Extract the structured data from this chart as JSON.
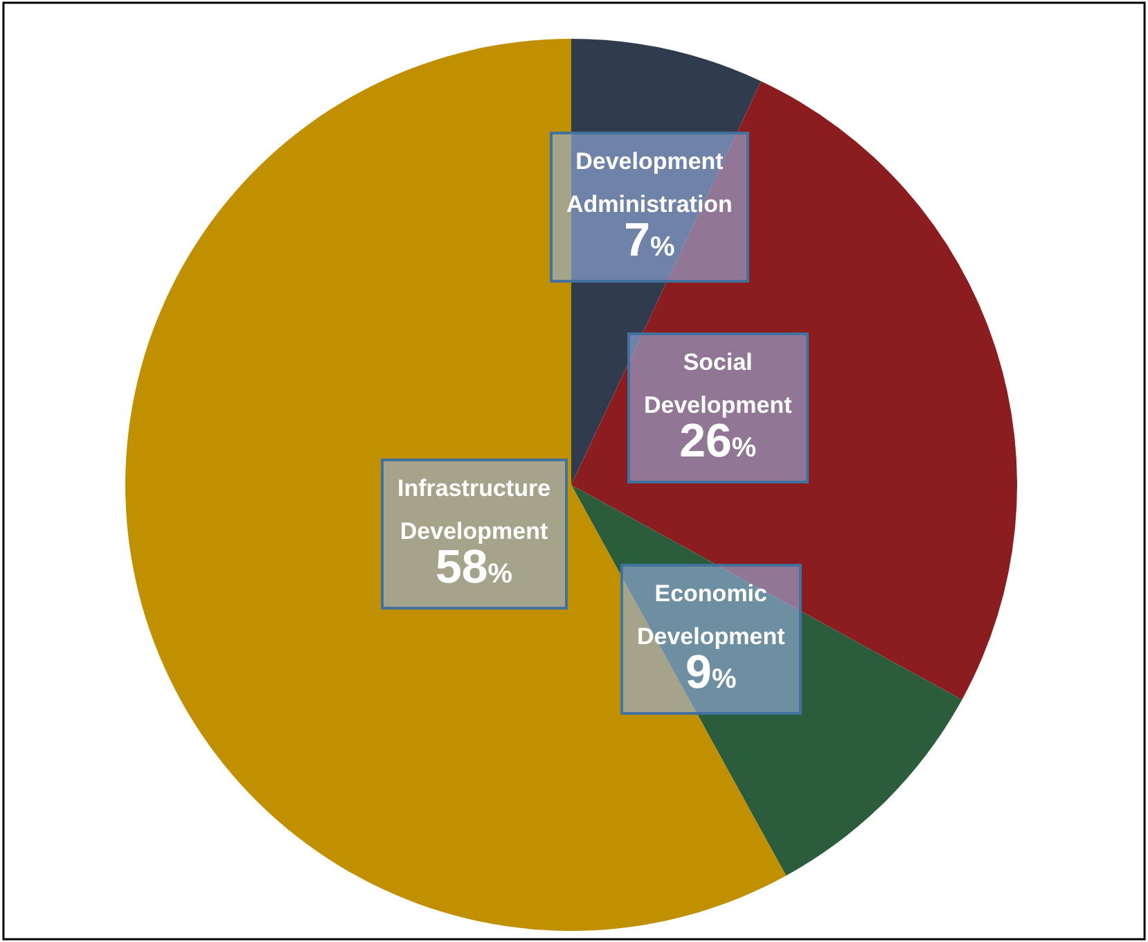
{
  "chart_data": {
    "type": "pie",
    "categories": [
      "Development Administration",
      "Social Development",
      "Economic Development",
      "Infrastructure Development"
    ],
    "values": [
      7,
      26,
      9,
      58
    ],
    "colors": [
      "#313b4e",
      "#8b1c1f",
      "#2b5c3c",
      "#c09000"
    ],
    "value_labels": [
      "7%",
      "26%",
      "9%",
      "58%"
    ],
    "legend": false
  }
}
